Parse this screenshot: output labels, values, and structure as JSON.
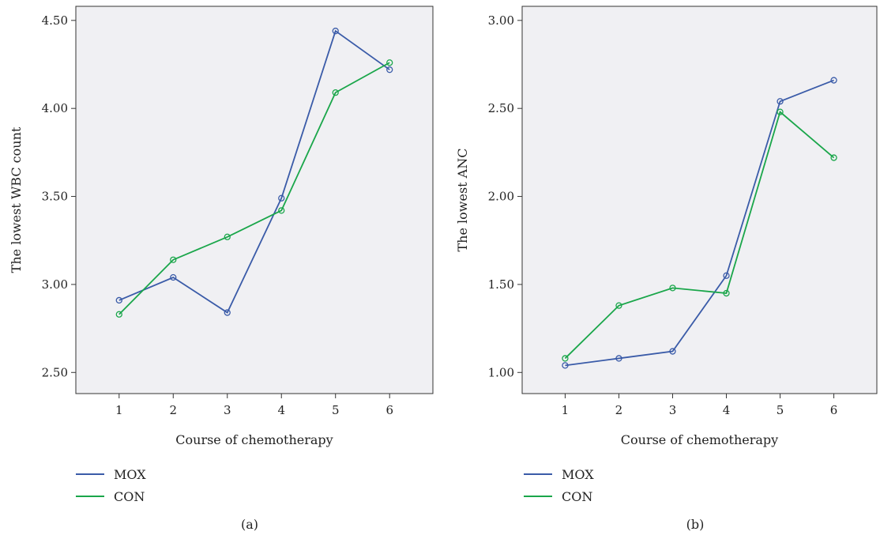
{
  "chart_data": [
    {
      "type": "line",
      "panel_label": "(a)",
      "xlabel": "Course of chemotherapy",
      "ylabel": "The lowest WBC count",
      "x": [
        1,
        2,
        3,
        4,
        5,
        6
      ],
      "x_ticks": [
        "1",
        "2",
        "3",
        "4",
        "5",
        "6"
      ],
      "y_ticks": [
        "2.50",
        "3.00",
        "3.50",
        "4.00",
        "4.50"
      ],
      "ylim": [
        2.38,
        4.58
      ],
      "xlim": [
        0.2,
        6.8
      ],
      "grid": false,
      "legend_position": "bottom-left",
      "series": [
        {
          "name": "MOX",
          "color": "#3a5ba8",
          "values": [
            2.91,
            3.04,
            2.84,
            3.49,
            4.44,
            4.22
          ]
        },
        {
          "name": "CON",
          "color": "#1aa64a",
          "values": [
            2.83,
            3.14,
            3.27,
            3.42,
            4.09,
            4.26
          ]
        }
      ]
    },
    {
      "type": "line",
      "panel_label": "(b)",
      "xlabel": "Course of chemotherapy",
      "ylabel": "The lowest ANC",
      "x": [
        1,
        2,
        3,
        4,
        5,
        6
      ],
      "x_ticks": [
        "1",
        "2",
        "3",
        "4",
        "5",
        "6"
      ],
      "y_ticks": [
        "1.00",
        "1.50",
        "2.00",
        "2.50",
        "3.00"
      ],
      "ylim": [
        0.88,
        3.08
      ],
      "xlim": [
        0.2,
        6.8
      ],
      "grid": false,
      "legend_position": "bottom-left",
      "series": [
        {
          "name": "MOX",
          "color": "#3a5ba8",
          "values": [
            1.04,
            1.08,
            1.12,
            1.55,
            2.54,
            2.66
          ]
        },
        {
          "name": "CON",
          "color": "#1aa64a",
          "values": [
            1.08,
            1.38,
            1.48,
            1.45,
            2.48,
            2.22
          ]
        }
      ]
    }
  ]
}
